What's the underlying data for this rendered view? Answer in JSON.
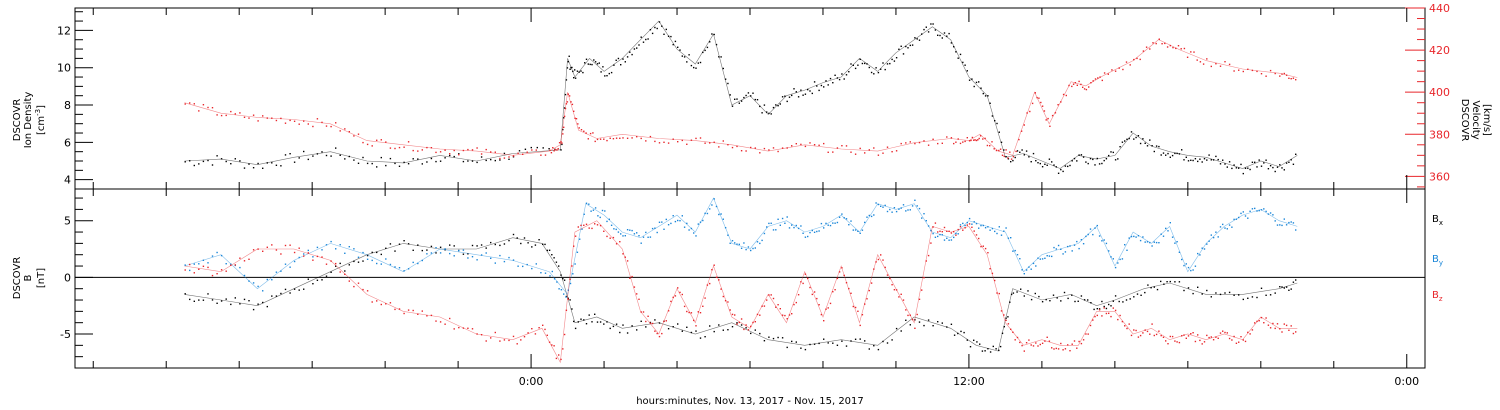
{
  "chart_data": [
    {
      "type": "line",
      "panel": "top",
      "left_axis": {
        "label_lines": [
          "DSCOVR",
          "Ion Density"
        ],
        "unit_base": "[cm",
        "unit_sup": "-3",
        "unit_end": "]",
        "ylim": [
          3.5,
          13.2
        ],
        "ticks": [
          "4",
          "6",
          "8",
          "10",
          "12"
        ],
        "color": "#000000"
      },
      "right_axis": {
        "label_lines": [
          "DSCOVR",
          "Velocity",
          "[km/s]"
        ],
        "ylim": [
          354,
          440
        ],
        "ticks": [
          "360",
          "380",
          "400",
          "420",
          "440"
        ],
        "color": "#e8262b"
      },
      "series": [
        {
          "color": "#000000",
          "axis": "left",
          "x": [
            -9.5,
            -8.5,
            -7.5,
            -6.5,
            -5.5,
            -4.5,
            -3.5,
            -2.5,
            -1.5,
            -0.5,
            0.8,
            1.0,
            1.2,
            1.6,
            2.0,
            2.5,
            3.0,
            3.5,
            4.0,
            4.5,
            5.0,
            5.5,
            6.0,
            6.5,
            7.0,
            7.5,
            8.0,
            8.5,
            9.0,
            9.5,
            10.0,
            10.5,
            11.0,
            11.5,
            12.0,
            12.5,
            13.0,
            13.5,
            14.0,
            14.5,
            15.0,
            15.5,
            16.0,
            16.5,
            17.0,
            17.5,
            18.0,
            18.5,
            19.0,
            19.5,
            20.0,
            20.5,
            21.0
          ],
          "y": [
            5.0,
            5.1,
            4.8,
            5.2,
            5.5,
            5.0,
            4.9,
            5.3,
            5.0,
            5.4,
            5.6,
            10.5,
            9.5,
            10.5,
            9.8,
            10.5,
            11.5,
            12.5,
            11.0,
            10.2,
            11.8,
            8.0,
            8.5,
            7.5,
            8.5,
            8.8,
            9.2,
            9.5,
            10.5,
            9.8,
            10.8,
            11.5,
            12.2,
            11.5,
            9.5,
            8.5,
            5.2,
            5.4,
            5.0,
            4.6,
            5.3,
            5.1,
            5.3,
            6.5,
            5.8,
            5.5,
            5.3,
            5.2,
            4.9,
            4.6,
            5.0,
            4.7,
            5.3
          ]
        },
        {
          "color": "#e8262b",
          "axis": "right",
          "x": [
            -9.5,
            -8.5,
            -7.5,
            -6.5,
            -5.5,
            -4.5,
            -3.5,
            -2.5,
            -1.5,
            -0.5,
            0.5,
            0.8,
            1.0,
            1.3,
            1.8,
            2.5,
            3.5,
            4.5,
            5.5,
            6.5,
            7.5,
            8.5,
            9.5,
            10.5,
            11.5,
            12.0,
            12.3,
            12.8,
            13.2,
            13.8,
            14.2,
            14.8,
            15.2,
            15.7,
            16.5,
            17.2,
            17.8,
            18.5,
            19.5,
            20.5,
            21.0
          ],
          "y": [
            395,
            390,
            388,
            387,
            385,
            377,
            375,
            373,
            372,
            370,
            372,
            375,
            400,
            382,
            378,
            380,
            378,
            377,
            375,
            372,
            375,
            373,
            372,
            376,
            378,
            377,
            380,
            372,
            370,
            400,
            385,
            405,
            403,
            408,
            415,
            425,
            420,
            415,
            411,
            409,
            407
          ]
        }
      ]
    },
    {
      "type": "line",
      "panel": "bottom",
      "left_axis": {
        "label_lines": [
          "DSCOVR",
          "B"
        ],
        "unit": "[nT]",
        "ylim": [
          -8,
          7.8
        ],
        "ticks": [
          "-5",
          "0",
          "5"
        ]
      },
      "legend": [
        {
          "base": "B",
          "sub": "x",
          "color": "#000000"
        },
        {
          "base": "B",
          "sub": "y",
          "color": "#1a86d8"
        },
        {
          "base": "B",
          "sub": "z",
          "color": "#e8262b"
        }
      ],
      "series": [
        {
          "name_base": "B",
          "name_sub": "x",
          "color": "#000000",
          "x": [
            -9.5,
            -8.5,
            -7.5,
            -6.5,
            -5.5,
            -4.5,
            -3.5,
            -2.5,
            -1.5,
            -0.5,
            0.3,
            0.8,
            1.2,
            1.8,
            2.5,
            3.5,
            4.5,
            5.5,
            6.5,
            7.5,
            8.5,
            9.5,
            10.5,
            11.5,
            12.2,
            12.8,
            13.2,
            14.0,
            14.8,
            15.5,
            16.0,
            16.8,
            17.5,
            18.5,
            19.5,
            20.5,
            21.0
          ],
          "y": [
            -1.5,
            -2.0,
            -2.5,
            -1.0,
            0.5,
            2.0,
            3.0,
            2.5,
            2.5,
            3.5,
            3.0,
            0.5,
            -4.0,
            -3.5,
            -4.5,
            -4.0,
            -5.0,
            -4.0,
            -5.5,
            -6.0,
            -5.5,
            -6.0,
            -3.5,
            -4.5,
            -6.0,
            -6.5,
            -1.0,
            -2.0,
            -1.5,
            -2.5,
            -2.0,
            -1.0,
            -0.5,
            -1.5,
            -1.5,
            -1.0,
            -0.5
          ]
        },
        {
          "name_base": "B",
          "name_sub": "y",
          "color": "#1a86d8",
          "x": [
            -9.5,
            -8.5,
            -7.5,
            -6.5,
            -5.5,
            -4.5,
            -3.5,
            -2.5,
            -1.5,
            -0.5,
            0.5,
            1.0,
            1.5,
            2.0,
            2.5,
            3.0,
            3.5,
            4.0,
            4.5,
            5.0,
            5.5,
            6.0,
            6.5,
            7.0,
            7.5,
            8.0,
            8.5,
            9.0,
            9.5,
            10.0,
            10.5,
            11.0,
            11.5,
            12.0,
            12.5,
            13.0,
            13.5,
            14.0,
            14.5,
            15.0,
            15.5,
            16.0,
            16.5,
            17.0,
            17.5,
            18.0,
            18.5,
            19.0,
            19.5,
            20.0,
            20.5,
            21.0
          ],
          "y": [
            1.0,
            2.0,
            -1.0,
            1.5,
            3.0,
            2.0,
            0.5,
            2.5,
            2.0,
            1.5,
            0.5,
            -1.5,
            6.5,
            5.5,
            4.0,
            3.5,
            4.5,
            5.5,
            4.0,
            7.0,
            3.0,
            2.5,
            4.5,
            5.0,
            4.0,
            4.5,
            5.5,
            4.0,
            6.5,
            6.0,
            6.5,
            4.0,
            3.5,
            5.0,
            4.5,
            4.0,
            0.5,
            2.0,
            2.5,
            3.0,
            4.5,
            1.0,
            4.0,
            3.0,
            4.5,
            0.5,
            3.0,
            4.5,
            5.5,
            6.0,
            5.0,
            4.5
          ]
        },
        {
          "name_base": "B",
          "name_sub": "z",
          "color": "#e8262b",
          "x": [
            -9.5,
            -8.5,
            -7.5,
            -6.5,
            -5.5,
            -4.5,
            -3.5,
            -2.5,
            -1.5,
            -0.5,
            0.3,
            0.8,
            1.2,
            1.8,
            2.5,
            3.0,
            3.5,
            4.0,
            4.5,
            5.0,
            5.5,
            6.0,
            6.5,
            7.0,
            7.5,
            8.0,
            8.5,
            9.0,
            9.5,
            10.0,
            10.5,
            11.0,
            11.5,
            12.0,
            12.5,
            13.0,
            13.5,
            14.0,
            14.5,
            15.0,
            15.5,
            16.0,
            16.5,
            17.0,
            17.5,
            18.0,
            18.5,
            19.0,
            19.5,
            20.0,
            20.5,
            21.0
          ],
          "y": [
            1.0,
            0.5,
            2.5,
            2.5,
            1.5,
            -1.5,
            -3.0,
            -3.5,
            -5.0,
            -5.5,
            -4.5,
            -7.5,
            4.0,
            5.0,
            2.5,
            -3.0,
            -5.0,
            -1.0,
            -4.0,
            1.0,
            -3.5,
            -4.5,
            -1.5,
            -4.0,
            0.5,
            -3.5,
            1.0,
            -4.0,
            2.0,
            -1.0,
            -4.0,
            4.5,
            4.0,
            4.5,
            2.0,
            -4.0,
            -6.0,
            -5.5,
            -6.0,
            -6.0,
            -3.0,
            -3.0,
            -5.0,
            -4.5,
            -5.5,
            -5.0,
            -5.5,
            -5.0,
            -5.5,
            -3.5,
            -4.5,
            -4.5
          ]
        }
      ]
    }
  ],
  "x_axis": {
    "xlim": [
      -12.5,
      24.5
    ],
    "major_ticks": [
      0,
      12,
      24
    ],
    "tick_labels": [
      "0:00",
      "12:00",
      "0:00"
    ],
    "minor_step": 2,
    "title": "hours:minutes, Nov. 13, 2017 - Nov. 15, 2017"
  }
}
